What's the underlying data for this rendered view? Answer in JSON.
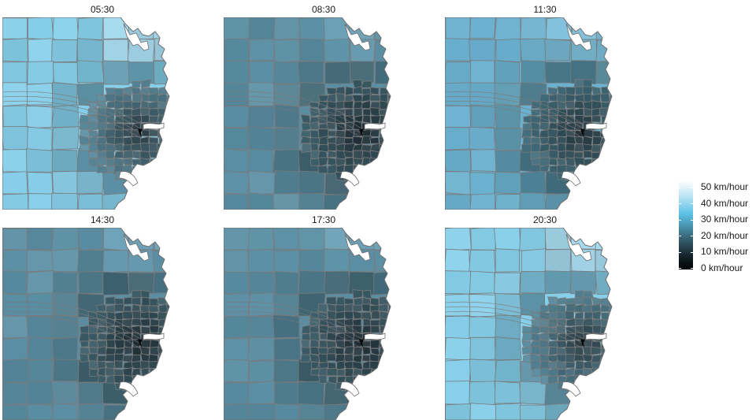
{
  "panels": [
    {
      "time": "05:30",
      "scheme": "light"
    },
    {
      "time": "08:30",
      "scheme": "dark"
    },
    {
      "time": "11:30",
      "scheme": "mid"
    },
    {
      "time": "14:30",
      "scheme": "dark"
    },
    {
      "time": "17:30",
      "scheme": "dark"
    },
    {
      "time": "20:30",
      "scheme": "light"
    }
  ],
  "legend": {
    "unit": "km/hour",
    "labels": [
      "50 km/hour",
      "40 km/hour",
      "30 km/hour",
      "20 km/hour",
      "10 km/hour",
      "0 km/hour"
    ],
    "values": [
      50,
      40,
      30,
      20,
      10,
      0
    ],
    "colors": {
      "high": "#ffffff",
      "mid": "#5bc0e5",
      "low": "#000000"
    }
  },
  "colors": {
    "background": "#ffffff",
    "borders": "#7a7a7a",
    "light_fill": "#7fcbe8",
    "mid_fill": "#5ea9c8",
    "dark_fill": "#4e7f90",
    "core_fill": "#1f2a30"
  }
}
